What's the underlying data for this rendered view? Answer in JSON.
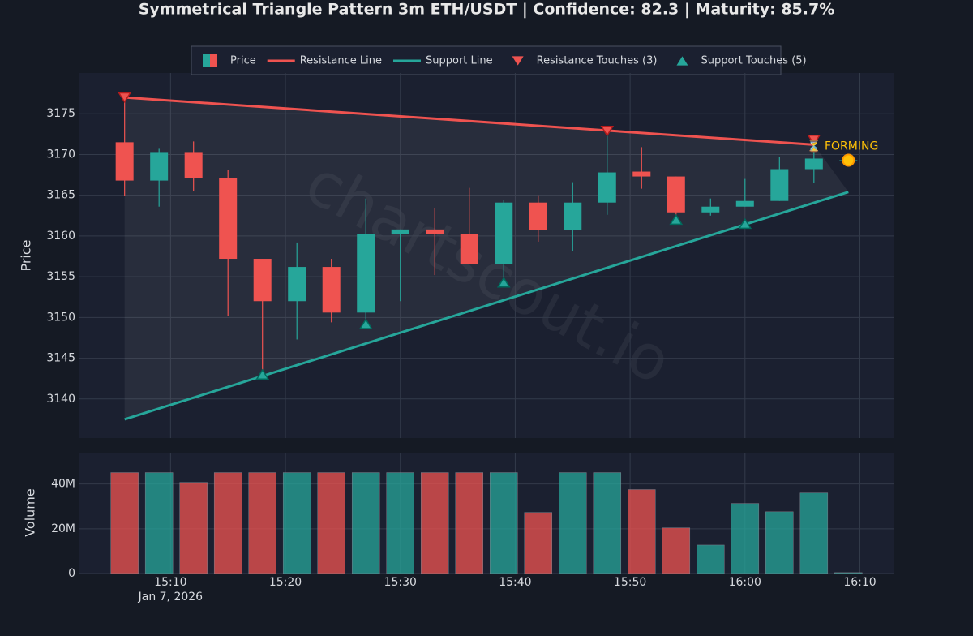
{
  "chart_data": {
    "type": "candlestick",
    "title": "Symmetrical Triangle Pattern 3m ETH/USDT | Confidence: 82.3 | Maturity: 85.7%",
    "watermark": "chartscout.io",
    "x": [
      "15:06",
      "15:09",
      "15:12",
      "15:15",
      "15:18",
      "15:21",
      "15:24",
      "15:27",
      "15:30",
      "15:33",
      "15:36",
      "15:39",
      "15:42",
      "15:45",
      "15:48",
      "15:51",
      "15:54",
      "15:57",
      "16:00",
      "16:03",
      "16:06",
      "16:09"
    ],
    "open": [
      3171.5,
      3166.8,
      3170.3,
      3167.1,
      3157.2,
      3152.0,
      3156.2,
      3150.6,
      3160.2,
      3160.8,
      3160.2,
      3156.6,
      3164.1,
      3160.7,
      3164.1,
      3167.9,
      3167.3,
      3162.9,
      3163.6,
      3164.3,
      3168.2,
      3169.3
    ],
    "high": [
      3177.0,
      3170.7,
      3171.6,
      3168.1,
      3157.2,
      3159.2,
      3157.2,
      3164.6,
      3160.8,
      3163.4,
      3165.9,
      3164.4,
      3165.0,
      3166.6,
      3173.0,
      3170.9,
      3167.3,
      3164.6,
      3167.0,
      3169.7,
      3171.2,
      3169.3
    ],
    "low": [
      3164.9,
      3163.6,
      3165.5,
      3150.2,
      3143.0,
      3147.3,
      3149.4,
      3149.4,
      3152.0,
      3155.2,
      3156.6,
      3154.3,
      3159.3,
      3158.1,
      3162.6,
      3165.8,
      3162.1,
      3162.5,
      3163.6,
      3164.3,
      3166.5,
      3169.3
    ],
    "close": [
      3166.8,
      3170.3,
      3167.1,
      3157.2,
      3152.0,
      3156.2,
      3150.6,
      3160.2,
      3160.8,
      3160.2,
      3156.6,
      3164.1,
      3160.7,
      3164.1,
      3167.8,
      3167.3,
      3162.9,
      3163.6,
      3164.3,
      3168.2,
      3169.5,
      3169.3
    ],
    "volume": [
      45100000,
      45100000,
      40700000,
      45100000,
      45100000,
      45100000,
      45100000,
      45100000,
      45100000,
      45100000,
      45100000,
      45100000,
      27300000,
      45100000,
      45100000,
      37500000,
      20400000,
      12700000,
      31300000,
      27600000,
      36000000,
      400000
    ],
    "colors": {
      "up": "#26a69a",
      "down": "#ef5350"
    },
    "price_name": "Price",
    "xlim": [
      "15:02",
      "16:13"
    ],
    "xticks": [
      "15:10",
      "15:20",
      "15:30",
      "15:40",
      "15:50",
      "16:00",
      "16:10"
    ],
    "x_date_label": "Jan 7, 2026",
    "ylabel": "Price",
    "ylim": [
      3135.2,
      3180
    ],
    "yticks": [
      3140,
      3145,
      3150,
      3155,
      3160,
      3165,
      3170,
      3175
    ],
    "volume_ylabel": "Volume",
    "volume_ylim": [
      0,
      54000000
    ],
    "volume_yticks": [
      0,
      {
        "value": 20000000,
        "label": "20M"
      },
      {
        "value": 40000000,
        "label": "40M"
      }
    ],
    "lines": [
      {
        "name": "Resistance Line",
        "color": "#ef5350",
        "x": [
          "15:06",
          "16:06"
        ],
        "values": [
          3177.0,
          3171.2
        ]
      },
      {
        "name": "Support Line",
        "color": "#26a69a",
        "x": [
          "15:06",
          "16:09"
        ],
        "values": [
          3137.5,
          3165.4
        ]
      }
    ],
    "touches": [
      {
        "name": "Resistance Touches (3)",
        "color": "#ef5350",
        "marker": "triangle-down",
        "x": [
          "15:06",
          "15:48",
          "16:06"
        ],
        "values": [
          3177.0,
          3172.9,
          3171.8
        ]
      },
      {
        "name": "Support Touches (5)",
        "color": "#26a69a",
        "marker": "triangle-up",
        "x": [
          "15:18",
          "15:27",
          "15:39",
          "15:54",
          "16:00"
        ],
        "values": [
          3143.0,
          3149.2,
          3154.3,
          3162.0,
          3161.5
        ]
      }
    ],
    "current": {
      "x": "16:09",
      "value": 3169.3,
      "color": "#ffc107"
    },
    "annotation": "⏳ FORMING",
    "grid": true,
    "legend_position": "top"
  }
}
